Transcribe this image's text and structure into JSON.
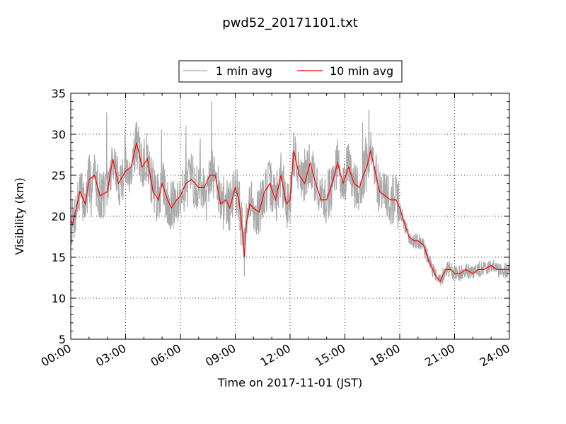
{
  "chart_data": {
    "type": "line",
    "title": "pwd52_20171101.txt",
    "xlabel": "Time on 2017-11-01 (JST)",
    "ylabel": "Visibility (km)",
    "xlim": [
      0,
      24
    ],
    "ylim": [
      5,
      35
    ],
    "x_ticks": [
      "00:00",
      "03:00",
      "06:00",
      "09:00",
      "12:00",
      "15:00",
      "18:00",
      "21:00",
      "24:00"
    ],
    "y_ticks": [
      "5",
      "10",
      "15",
      "20",
      "25",
      "30",
      "35"
    ],
    "x_unit": "hour of day",
    "grid": true,
    "legend_position": "top-center",
    "series": [
      {
        "name": "1 min avg",
        "color": "#aaaaaa",
        "noise": 2.2,
        "x": [
          0,
          0.1,
          0.5,
          0.8,
          1,
          1.3,
          1.6,
          2,
          2.3,
          2.6,
          3,
          3.3,
          3.6,
          3.9,
          4.2,
          4.5,
          4.8,
          5,
          5.3,
          5.5,
          5.8,
          6,
          6.3,
          6.6,
          7,
          7.3,
          7.6,
          7.9,
          8.2,
          8.5,
          8.7,
          9,
          9.2,
          9.4,
          9.5,
          9.6,
          9.8,
          10,
          10.3,
          10.6,
          10.9,
          11.2,
          11.5,
          11.8,
          12,
          12.2,
          12.5,
          12.8,
          13.1,
          13.4,
          13.7,
          14,
          14.3,
          14.6,
          14.9,
          15.2,
          15.5,
          15.8,
          16,
          16.2,
          16.4,
          16.6,
          16.9,
          17.2,
          17.5,
          17.8,
          18,
          18.2,
          18.5,
          18.8,
          19,
          19.3,
          19.6,
          19.9,
          20.2,
          20.5,
          20.8,
          21,
          21.3,
          21.6,
          22,
          22.3,
          22.6,
          23,
          23.3,
          23.6,
          24
        ],
        "values": [
          19.5,
          19,
          23,
          21.5,
          24.5,
          25,
          22.5,
          23,
          27,
          24,
          25.5,
          26,
          29,
          26,
          27,
          23,
          22,
          24,
          22,
          21,
          22,
          22.5,
          24,
          24.5,
          23.5,
          23.5,
          25,
          25,
          21.5,
          22,
          21,
          23.5,
          22,
          18,
          15,
          19,
          21.5,
          21,
          20.5,
          23,
          24,
          22,
          25,
          21.5,
          22,
          28,
          25,
          24,
          26.5,
          24,
          22,
          22,
          24,
          26.5,
          24,
          26,
          24,
          23.5,
          25,
          26,
          28,
          26,
          23,
          22.5,
          22,
          22,
          21,
          19.5,
          17.5,
          17,
          17,
          16.5,
          14.5,
          13,
          12,
          13.5,
          13.5,
          13,
          13,
          13.5,
          13,
          13.5,
          13.5,
          14,
          13.5,
          13.5,
          13.5
        ]
      },
      {
        "name": "10 min avg",
        "color": "#ff0000",
        "x": [
          0,
          0.1,
          0.5,
          0.8,
          1,
          1.3,
          1.6,
          2,
          2.3,
          2.6,
          3,
          3.3,
          3.6,
          3.9,
          4.2,
          4.5,
          4.8,
          5,
          5.3,
          5.5,
          5.8,
          6,
          6.3,
          6.6,
          7,
          7.3,
          7.6,
          7.9,
          8.2,
          8.5,
          8.7,
          9,
          9.2,
          9.4,
          9.5,
          9.6,
          9.8,
          10,
          10.3,
          10.6,
          10.9,
          11.2,
          11.5,
          11.8,
          12,
          12.2,
          12.5,
          12.8,
          13.1,
          13.4,
          13.7,
          14,
          14.3,
          14.6,
          14.9,
          15.2,
          15.5,
          15.8,
          16,
          16.2,
          16.4,
          16.6,
          16.9,
          17.2,
          17.5,
          17.8,
          18,
          18.2,
          18.5,
          18.8,
          19,
          19.3,
          19.6,
          19.9,
          20.2,
          20.5,
          20.8,
          21,
          21.3,
          21.6,
          22,
          22.3,
          22.6,
          23,
          23.3,
          23.6,
          24
        ],
        "values": [
          19.5,
          19,
          23,
          21.5,
          24.5,
          25,
          22.5,
          23,
          27,
          24,
          25.5,
          26,
          29,
          26,
          27,
          23,
          22,
          24,
          22,
          21,
          22,
          22.5,
          24,
          24.5,
          23.5,
          23.5,
          25,
          25,
          21.5,
          22,
          21,
          23.5,
          22,
          18,
          15,
          19,
          21.5,
          21,
          20.5,
          23,
          24,
          22,
          25,
          21.5,
          22,
          28,
          25,
          24,
          26.5,
          24,
          22,
          22,
          24,
          26.5,
          24,
          26,
          24,
          23.5,
          25,
          26,
          28,
          26,
          23,
          22.5,
          22,
          22,
          21,
          19.5,
          17.5,
          17,
          17,
          16.5,
          14.5,
          13,
          12,
          13.5,
          13.5,
          13,
          13,
          13.5,
          13,
          13.5,
          13.5,
          14,
          13.5,
          13.5,
          13.5
        ]
      }
    ]
  }
}
